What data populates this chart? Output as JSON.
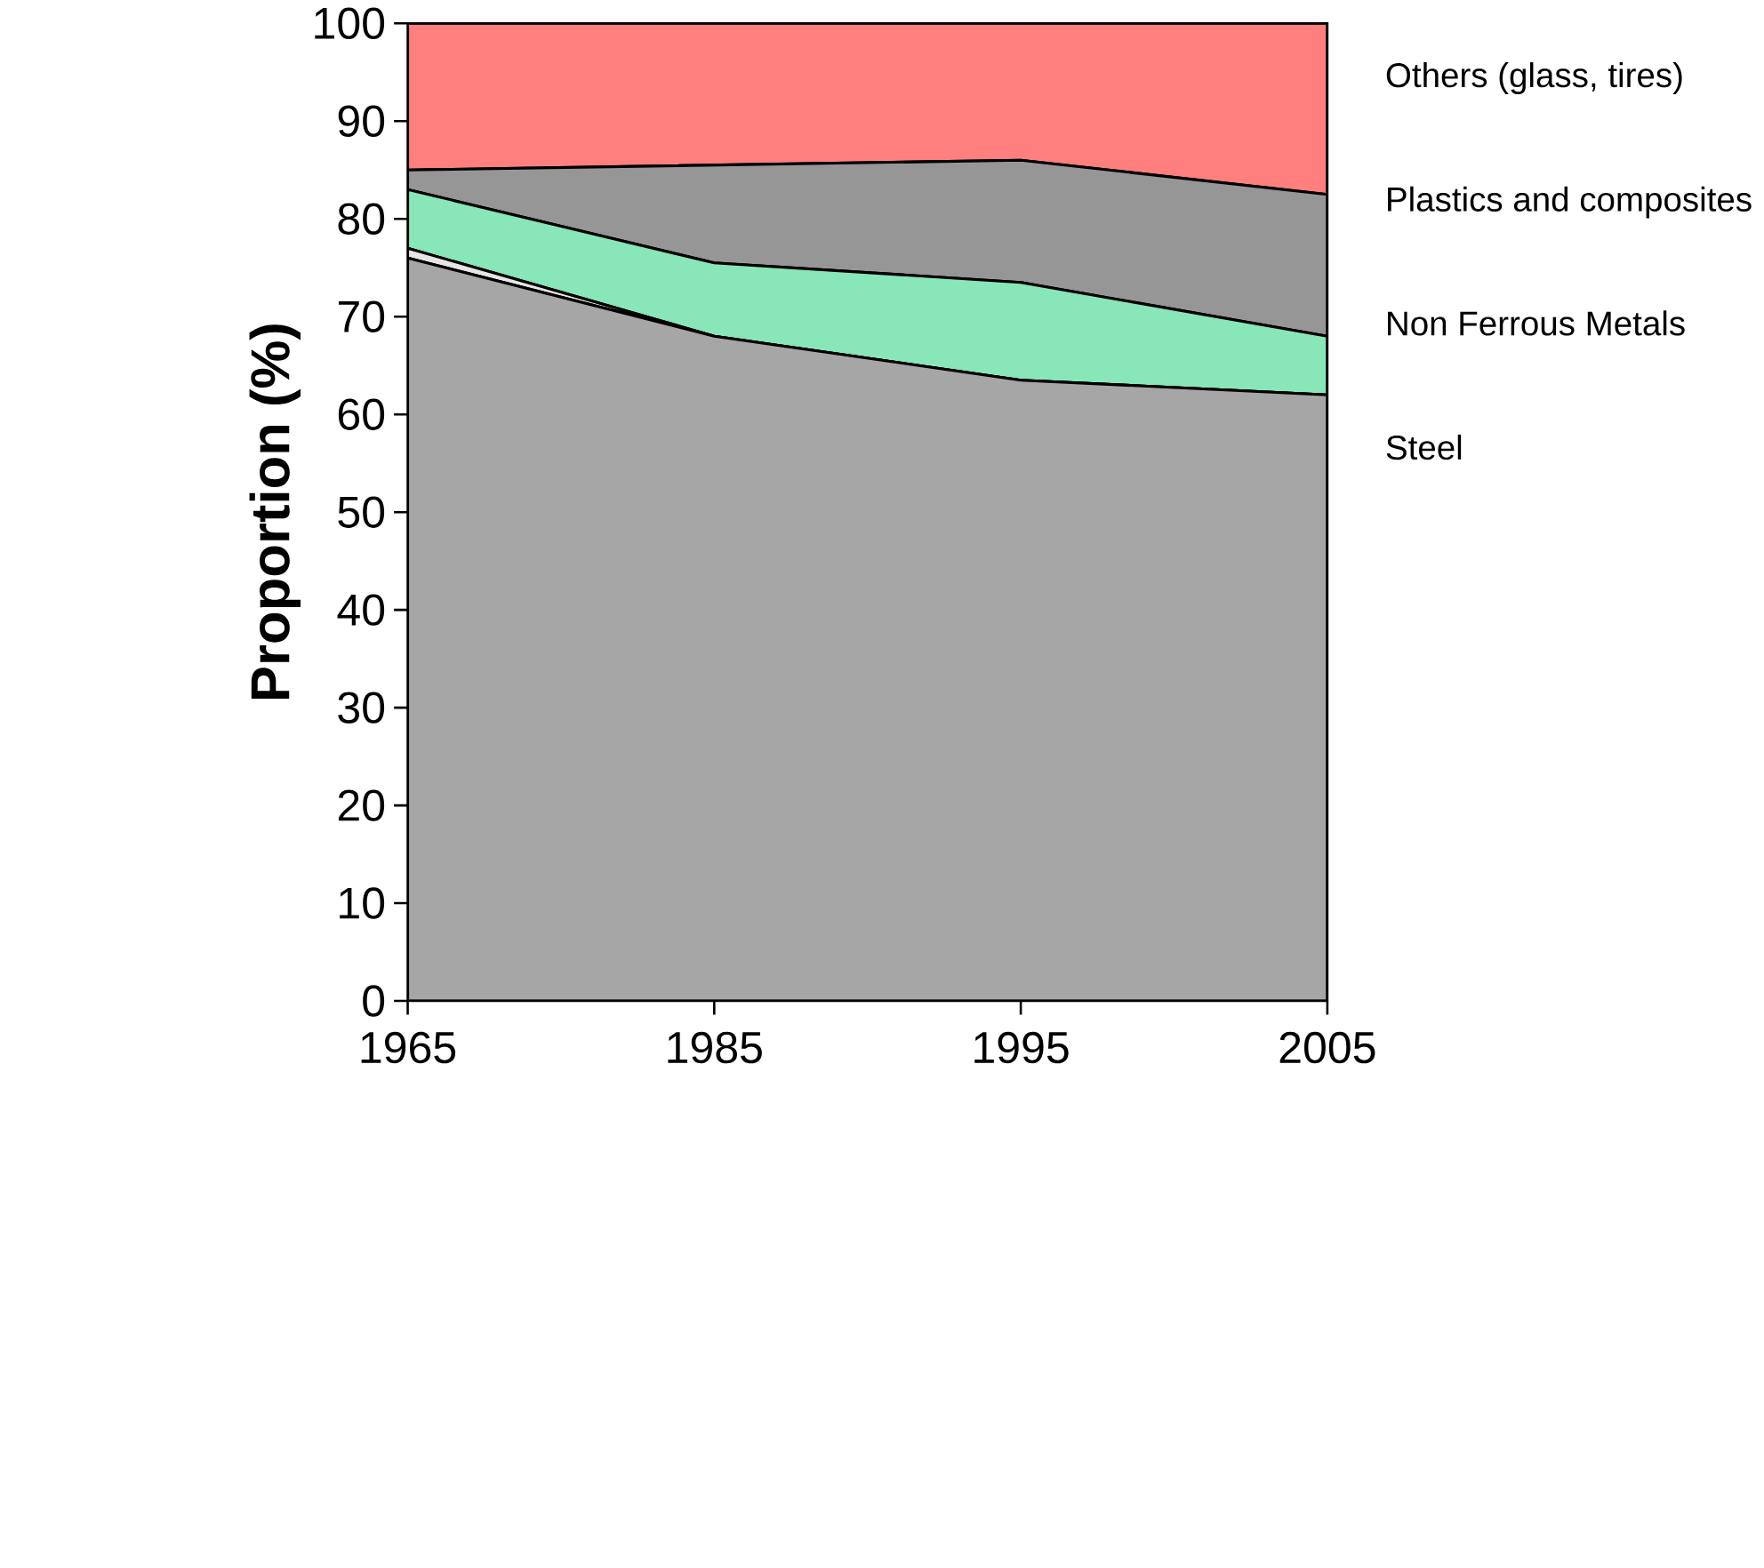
{
  "chart_data": {
    "type": "area",
    "stacked": true,
    "ylabel": "Proportion (%)",
    "categories": [
      "1965",
      "1985",
      "1995",
      "2005"
    ],
    "series": [
      {
        "name": "Steel",
        "color": "#a6a6a6",
        "values": [
          76,
          68,
          63.5,
          62
        ]
      },
      {
        "color": "#e6e6e6",
        "values": [
          1,
          0,
          0,
          0
        ]
      },
      {
        "name": "Non Ferrous Metals",
        "color": "#88e6b8",
        "values": [
          6,
          7.5,
          10,
          6
        ]
      },
      {
        "name": "Plastics and composites",
        "color": "#969696",
        "values": [
          2,
          10,
          12.5,
          14.5
        ]
      },
      {
        "name": "Others (glass, tires)",
        "color": "#ff7f7f",
        "values": [
          15,
          14.5,
          14,
          17.5
        ]
      }
    ],
    "ylim": [
      0,
      100
    ],
    "yticks": [
      0,
      10,
      20,
      30,
      40,
      50,
      60,
      70,
      80,
      90,
      100
    ],
    "grid": false,
    "legend": "right",
    "marker": "none",
    "line_style": "solid"
  }
}
